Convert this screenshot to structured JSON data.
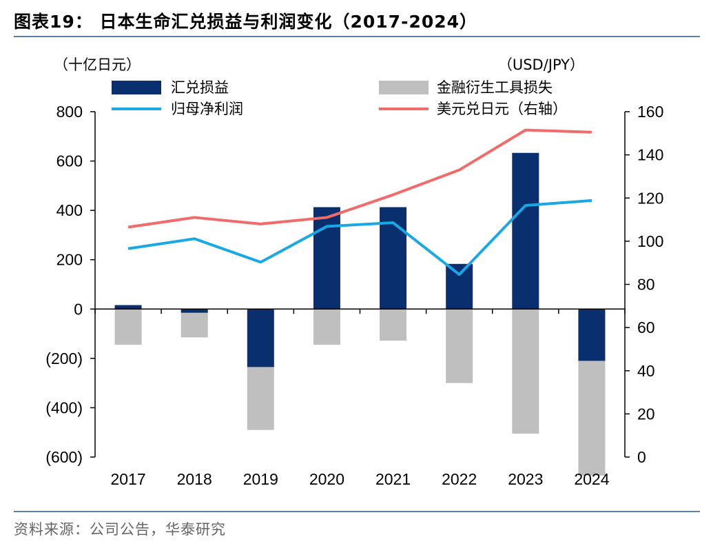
{
  "header": {
    "figure_title": "图表19：  日本生命汇兑损益与利润变化（2017-2024）"
  },
  "footer": {
    "source": "资料来源：公司公告，华泰研究"
  },
  "colors": {
    "fx_bar": "#0a2f6e",
    "deriv_bar": "#bfbfbf",
    "profit_line": "#19a8e6",
    "usdjpy_line": "#f26b6b",
    "rule": "#5b7fa6"
  },
  "chart_data": {
    "type": "bar",
    "categories": [
      "2017",
      "2018",
      "2019",
      "2020",
      "2021",
      "2022",
      "2023",
      "2024"
    ],
    "left_axis": {
      "label": "（十亿日元）",
      "range": [
        -600,
        800
      ],
      "ticks": [
        800,
        600,
        400,
        200,
        0,
        -200,
        -400,
        -600
      ],
      "tick_labels": [
        "800",
        "600",
        "400",
        "200",
        "0",
        "(200)",
        "(400)",
        "(600)"
      ]
    },
    "right_axis": {
      "label": "（USD/JPY）",
      "range": [
        0,
        160
      ],
      "ticks": [
        160,
        140,
        120,
        100,
        80,
        60,
        40,
        20,
        0
      ],
      "tick_labels": [
        "160",
        "140",
        "120",
        "100",
        "80",
        "60",
        "40",
        "20",
        "0"
      ]
    },
    "series": [
      {
        "name": "汇兑损益",
        "kind": "bar",
        "axis": "left",
        "values": [
          16,
          -15,
          -235,
          413,
          413,
          183,
          633,
          -210
        ]
      },
      {
        "name": "金融衍生工具损失",
        "kind": "bar",
        "axis": "left",
        "values": [
          -145,
          -100,
          -255,
          -145,
          -128,
          -300,
          -505,
          -465
        ]
      },
      {
        "name": "归母净利润",
        "kind": "line",
        "axis": "left",
        "values": [
          245,
          285,
          190,
          335,
          350,
          140,
          420,
          440
        ]
      },
      {
        "name": "美元兑日元（右轴）",
        "kind": "line",
        "axis": "right",
        "values": [
          106.5,
          111,
          108,
          111,
          121.5,
          133,
          151.5,
          150.5
        ]
      }
    ]
  }
}
